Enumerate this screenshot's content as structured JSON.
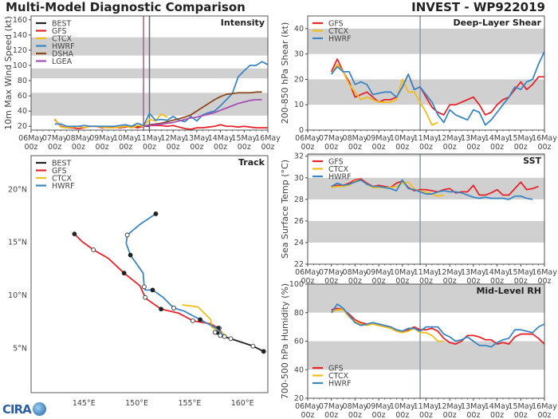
{
  "header": {
    "title": "Multi-Model Diagnostic Comparison",
    "storm": "INVEST - WP922019"
  },
  "logo_text": "CIRA",
  "chart_data": [
    {
      "id": "intensity",
      "type": "line",
      "title": "Intensity",
      "ylabel": "10m Max Wind Speed (kt)",
      "ylim": [
        15,
        165
      ],
      "yticks": [
        "20",
        "40",
        "60",
        "80",
        "100",
        "120",
        "140",
        "160"
      ],
      "x_ticks": [
        "06May 00z",
        "07May 00z",
        "08May 00z",
        "09May 00z",
        "10May 00z",
        "11May 00z",
        "12May 00z",
        "13May 00z",
        "14May 00z",
        "15May 00z",
        "16May 00z"
      ],
      "xlim": [
        "06May 00z",
        "16May 00z"
      ],
      "shaded_bands": [
        [
          34,
          64
        ],
        [
          83,
          96
        ],
        [
          113,
          137
        ]
      ],
      "vlines": [
        {
          "time": "10May 18z",
          "color": "#a0609a"
        },
        {
          "time": "11May 00z",
          "color": "#666666"
        }
      ],
      "legend": "top-left",
      "series": [
        {
          "name": "BEST",
          "color": "#222222",
          "start": "10May 00z",
          "step_hours": 6,
          "values": [
            20,
            20,
            20,
            20,
            20
          ]
        },
        {
          "name": "GFS",
          "color": "#e8232a",
          "start": "07May 00z",
          "step_hours": 6,
          "values": [
            29,
            20,
            18,
            18,
            17,
            18,
            20,
            20,
            18,
            19,
            19,
            18,
            19,
            20,
            18,
            20,
            21,
            21,
            21,
            20,
            21,
            19,
            17,
            16,
            18,
            18,
            19,
            20,
            22,
            20,
            20,
            19,
            20,
            19,
            18,
            18,
            18
          ]
        },
        {
          "name": "CTCX",
          "color": "#f2bd1a",
          "start": "07May 00z",
          "step_hours": 6,
          "values": [
            30,
            19,
            18,
            19,
            20,
            18,
            20,
            20,
            19,
            18,
            18,
            19,
            20,
            18,
            21,
            20,
            29,
            27,
            36,
            32
          ]
        },
        {
          "name": "HWRF",
          "color": "#3b86c4",
          "start": "07May 00z",
          "step_hours": 6,
          "values": [
            23,
            23,
            20,
            20,
            20,
            21,
            20,
            20,
            20,
            20,
            20,
            21,
            22,
            20,
            24,
            21,
            37,
            28,
            29,
            28,
            33,
            28,
            26,
            33,
            27,
            35,
            38,
            40,
            47,
            55,
            63,
            85,
            93,
            100,
            100,
            105,
            101
          ]
        },
        {
          "name": "DSHA",
          "color": "#8b4a1e",
          "start": "10May 18z",
          "step_hours": 6,
          "values": [
            20,
            22,
            23,
            24,
            26,
            28,
            30,
            32,
            35,
            40,
            45,
            50,
            55,
            59,
            62,
            63,
            64,
            64,
            64,
            65,
            65
          ]
        },
        {
          "name": "LGEA",
          "color": "#a64fb5",
          "start": "10May 18z",
          "step_hours": 6,
          "values": [
            20,
            21,
            22,
            23,
            24,
            25,
            27,
            29,
            31,
            32,
            34,
            36,
            38,
            41,
            44,
            47,
            50,
            52,
            54,
            55,
            55
          ]
        }
      ]
    },
    {
      "id": "shear",
      "type": "line",
      "title": "Deep-Layer Shear",
      "ylabel": "200-850 hPa Shear (kt)",
      "ylim": [
        0,
        45
      ],
      "yticks": [
        "0",
        "10",
        "20",
        "30",
        "40"
      ],
      "x_ticks": [
        "06May 00z",
        "07May 00z",
        "08May 00z",
        "09May 00z",
        "10May 00z",
        "11May 00z",
        "12May 00z",
        "13May 00z",
        "14May 00z",
        "15May 00z",
        "16May 00z"
      ],
      "xlim": [
        "06May 00z",
        "16May 00z"
      ],
      "shaded_bands": [
        [
          10,
          20
        ],
        [
          30,
          40
        ]
      ],
      "vlines": [
        {
          "time": "10May 18z",
          "color": "#8a9aaa"
        }
      ],
      "legend": "top-left",
      "series": [
        {
          "name": "GFS",
          "color": "#e8232a",
          "start": "07May 00z",
          "step_hours": 6,
          "values": [
            23,
            28,
            23,
            19,
            13,
            14,
            15,
            13,
            11,
            12,
            12,
            13,
            17,
            22,
            16,
            17,
            13,
            9,
            7,
            6,
            10,
            10,
            11,
            12,
            13,
            10,
            6,
            7,
            10,
            12,
            13,
            16,
            19,
            16,
            18,
            21,
            21
          ]
        },
        {
          "name": "CTCX",
          "color": "#f2bd1a",
          "start": "07May 00z",
          "step_hours": 6,
          "values": [
            22,
            26,
            23,
            18,
            15,
            12,
            13,
            12,
            11,
            11,
            11,
            12,
            20,
            15,
            15,
            11,
            7,
            2,
            3
          ]
        },
        {
          "name": "HWRF",
          "color": "#3b86c4",
          "start": "07May 00z",
          "step_hours": 6,
          "values": [
            22,
            25,
            23,
            23,
            18,
            19,
            18,
            14,
            14.5,
            15,
            15,
            13,
            17,
            22,
            16,
            17,
            14,
            11,
            6,
            3,
            8,
            6,
            5,
            4,
            8,
            7,
            2,
            4,
            7,
            10,
            13,
            17,
            16,
            19,
            20,
            26,
            31
          ]
        }
      ]
    },
    {
      "id": "sst",
      "type": "line",
      "title": "SST",
      "ylabel": "Sea Surface Temp (°C)",
      "ylim": [
        22,
        32.2
      ],
      "yticks": [
        "22",
        "24",
        "26",
        "28",
        "30",
        "32"
      ],
      "x_ticks": [
        "06May 00z",
        "07May 00z",
        "08May 00z",
        "09May 00z",
        "10May 00z",
        "11May 00z",
        "12May 00z",
        "13May 00z",
        "14May 00z",
        "15May 00z",
        "16May 00z"
      ],
      "xlim": [
        "06May 00z",
        "16May 00z"
      ],
      "shaded_bands": [
        [
          24,
          26
        ],
        [
          28,
          30
        ],
        [
          32,
          33
        ]
      ],
      "vlines": [
        {
          "time": "10May 18z",
          "color": "#8a9aaa"
        }
      ],
      "legend": "top-left",
      "series": [
        {
          "name": "GFS",
          "color": "#e8232a",
          "start": "07May 00z",
          "step_hours": 6,
          "values": [
            29.2,
            29.3,
            29.3,
            29.5,
            29.8,
            29.9,
            29.5,
            29.2,
            29.3,
            29.2,
            29.1,
            29.5,
            29.7,
            29.1,
            28.8,
            28.9,
            28.9,
            28.8,
            28.7,
            28.9,
            29.0,
            28.6,
            28.7,
            28.7,
            29.3,
            28.4,
            28.4,
            28.6,
            28.9,
            28.4,
            28.4,
            29.0,
            29.6,
            28.9,
            29.0,
            29.2
          ]
        },
        {
          "name": "CTCX",
          "color": "#f2bd1a",
          "start": "07May 00z",
          "step_hours": 6,
          "values": [
            29.1,
            29.2,
            29.2,
            29.3,
            29.7,
            29.8,
            29.4,
            29.1,
            29.1,
            29.1,
            29.1,
            29.2,
            29.5,
            29.6,
            29.0,
            28.7,
            28.7,
            28.5,
            28.3,
            28.4
          ]
        },
        {
          "name": "HWRF",
          "color": "#3b86c4",
          "start": "07May 00z",
          "step_hours": 6,
          "values": [
            29.2,
            29.5,
            29.3,
            29.4,
            29.6,
            29.8,
            29.4,
            29.2,
            29.2,
            29.1,
            29.0,
            28.8,
            29.8,
            29.0,
            28.9,
            28.7,
            28.5,
            28.5,
            28.7,
            28.8,
            28.7,
            28.7,
            28.6,
            28.4,
            28.2,
            28.1,
            28.2,
            28.1,
            28.1,
            28.1,
            28.0,
            28.3,
            28.3,
            28.1,
            28.0
          ]
        }
      ]
    },
    {
      "id": "rh",
      "type": "line",
      "title": "Mid-Level RH",
      "ylabel": "700-500 hPa Humidity (%)",
      "ylim": [
        20,
        100
      ],
      "yticks": [
        "20",
        "40",
        "60",
        "80",
        "100"
      ],
      "x_ticks": [
        "06May 00z",
        "07May 00z",
        "08May 00z",
        "09May 00z",
        "10May 00z",
        "11May 00z",
        "12May 00z",
        "13May 00z",
        "14May 00z",
        "15May 00z",
        "16May 00z"
      ],
      "xlim": [
        "06May 00z",
        "16May 00z"
      ],
      "shaded_bands": [
        [
          40,
          60
        ],
        [
          80,
          100
        ]
      ],
      "vlines": [
        {
          "time": "10May 18z",
          "color": "#8a9aaa"
        }
      ],
      "legend": "bottom-left",
      "series": [
        {
          "name": "GFS",
          "color": "#e8232a",
          "start": "07May 00z",
          "step_hours": 6,
          "values": [
            82,
            83,
            82,
            79,
            75,
            73,
            72,
            72,
            72,
            71,
            70,
            68,
            67,
            68,
            70,
            68,
            68,
            69,
            67,
            62,
            59,
            58,
            60,
            64,
            64,
            63,
            61,
            61,
            58,
            59,
            58,
            63,
            65,
            65,
            65,
            62,
            58
          ]
        },
        {
          "name": "CTCX",
          "color": "#f2bd1a",
          "start": "07May 00z",
          "step_hours": 6,
          "values": [
            80,
            82,
            82,
            77,
            74,
            72,
            71,
            72,
            71,
            70,
            69,
            67,
            66,
            67,
            69,
            66,
            66,
            64,
            60,
            60
          ]
        },
        {
          "name": "HWRF",
          "color": "#3b86c4",
          "start": "07May 00z",
          "step_hours": 6,
          "values": [
            80,
            86,
            83,
            78,
            73,
            71,
            72,
            73,
            72,
            71,
            70,
            68,
            67,
            69,
            69,
            67,
            70,
            70,
            70,
            65,
            63,
            60,
            61,
            63,
            60,
            57,
            57,
            56,
            59,
            61,
            62,
            68,
            68,
            67,
            66,
            70,
            72
          ]
        }
      ]
    },
    {
      "id": "track",
      "type": "line",
      "title": "Track",
      "xlim": [
        140,
        162.4
      ],
      "ylim": [
        0.8,
        23.2
      ],
      "x_ticks": [
        "145°E",
        "150°E",
        "155°E",
        "160°E"
      ],
      "x_tick_values": [
        145,
        150,
        155,
        160
      ],
      "y_ticks": [
        "5°N",
        "10°N",
        "15°N",
        "20°N"
      ],
      "y_tick_values": [
        5,
        10,
        15,
        20
      ],
      "legend": "top-left",
      "series": [
        {
          "name": "BEST",
          "color": "#222222",
          "lon": [
            162,
            161,
            158.9,
            157.9,
            157.6,
            157.8,
            157.4
          ],
          "lat": [
            4.7,
            5.2,
            5.9,
            6.2,
            6.5,
            6.9,
            6.5
          ]
        },
        {
          "name": "GFS",
          "color": "#e8232a",
          "lon": [
            144.1,
            144.8,
            145.9,
            147.3,
            148.8,
            150.3,
            150.8,
            151.0,
            152.3,
            154.0,
            155.3,
            157.0,
            157.7,
            158.3
          ],
          "lat": [
            15.8,
            15.1,
            14.3,
            13.5,
            12.1,
            10.9,
            9.8,
            9.6,
            8.7,
            8.3,
            7.6,
            7.3,
            6.9,
            6.2
          ]
        },
        {
          "name": "CTCX",
          "color": "#f2bd1a",
          "lon": [
            154.3,
            155.8,
            157.0,
            157.1,
            158.0,
            158.3,
            158.3
          ],
          "lat": [
            9.1,
            8.9,
            7.7,
            7.0,
            6.5,
            6.3,
            6.0
          ]
        },
        {
          "name": "HWRF",
          "color": "#3b86c4",
          "lon": [
            151.8,
            150.3,
            149.1,
            149.0,
            149.4,
            150.6,
            150.7,
            150.8,
            151.5,
            152.5,
            153.5,
            154.5,
            156.0,
            157.5,
            158.3,
            158.5
          ],
          "lat": [
            17.7,
            16.7,
            15.7,
            14.9,
            13.8,
            12.1,
            10.8,
            10.5,
            10.5,
            9.8,
            8.8,
            8.5,
            7.7,
            6.9,
            6.1,
            6.0
          ]
        }
      ]
    }
  ]
}
